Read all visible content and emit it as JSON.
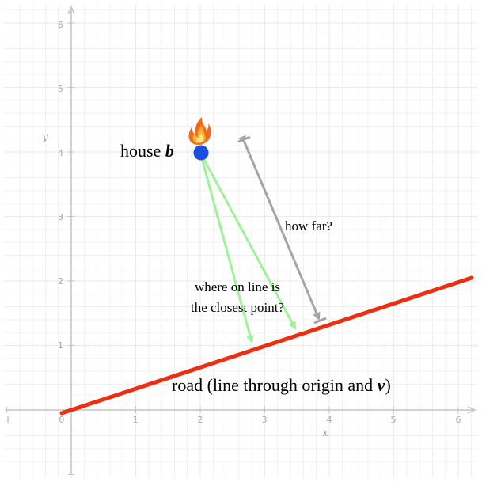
{
  "diagram": {
    "axes": {
      "x_label": "x",
      "y_label": "y",
      "x_ticks": [
        "1",
        "2",
        "3",
        "4",
        "5",
        "6"
      ],
      "y_ticks": [
        "1",
        "2",
        "3",
        "4",
        "5",
        "6"
      ],
      "origin_label": "0",
      "neg_x_label": "l",
      "x_range": [
        -1,
        6.2
      ],
      "y_range": [
        -1,
        6.3
      ],
      "grid": true
    },
    "house": {
      "label": "house ",
      "var": "b",
      "point": [
        2,
        4
      ],
      "fire_icon": "fire-icon"
    },
    "road": {
      "label_pre": "road (line through origin and ",
      "label_var": "v",
      "label_post": ")",
      "direction": [
        6.2,
        2.07
      ]
    },
    "question_far": "how far?",
    "question_where_1": "where on line is",
    "question_where_2": "the closest point?",
    "colors": {
      "road": "#ee2e10",
      "house": "#1a4fe0",
      "guess_arrows": "#9ef29a",
      "distance": "#a5a5a5",
      "grid": "#ececec",
      "axis": "#c4c4c4"
    }
  }
}
